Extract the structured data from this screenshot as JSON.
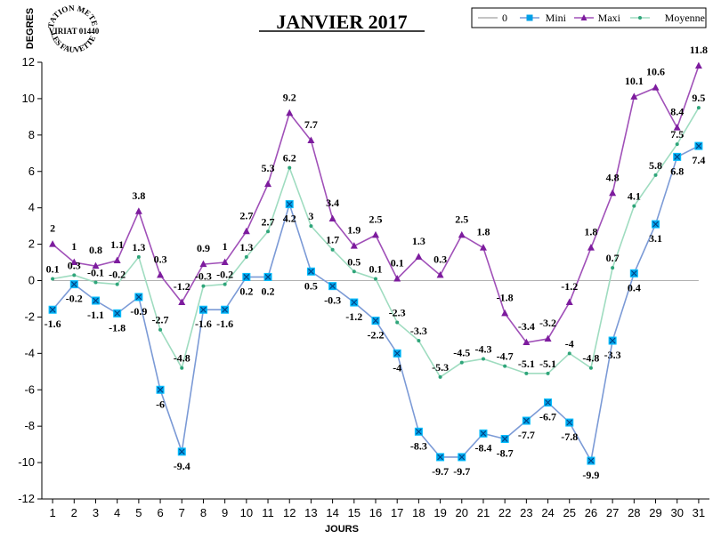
{
  "chart_data": {
    "type": "line",
    "title": "JANVIER 2017",
    "xlabel": "JOURS",
    "ylabel": "DEGRES",
    "ylim": [
      -12,
      12
    ],
    "yticks": [
      -12,
      -10,
      -8,
      -6,
      -4,
      -2,
      0,
      2,
      4,
      6,
      8,
      10,
      12
    ],
    "grid": false,
    "legend_position": "top-right",
    "x": [
      1,
      2,
      3,
      4,
      5,
      6,
      7,
      8,
      9,
      10,
      11,
      12,
      13,
      14,
      15,
      16,
      17,
      18,
      19,
      20,
      21,
      22,
      23,
      24,
      25,
      26,
      27,
      28,
      29,
      30,
      31
    ],
    "series": [
      {
        "name": "0",
        "color": "#b0b0b0",
        "marker": "none",
        "show_labels": false,
        "values": [
          0,
          0,
          0,
          0,
          0,
          0,
          0,
          0,
          0,
          0,
          0,
          0,
          0,
          0,
          0,
          0,
          0,
          0,
          0,
          0,
          0,
          0,
          0,
          0,
          0,
          0,
          0,
          0,
          0,
          0,
          0
        ]
      },
      {
        "name": "Mini",
        "color": "#7b9ad6",
        "marker_color": "#00a0e8",
        "marker": "square",
        "show_labels": true,
        "values": [
          -1.6,
          -0.2,
          -1.1,
          -1.8,
          -0.9,
          -6,
          -9.4,
          -1.6,
          -1.6,
          0.2,
          0.2,
          4.2,
          0.5,
          -0.3,
          -1.2,
          -2.2,
          -4,
          -8.3,
          -9.7,
          -9.7,
          -8.4,
          -8.7,
          -7.7,
          -6.7,
          -7.8,
          -9.9,
          -3.3,
          0.4,
          3.1,
          6.8,
          7.4
        ]
      },
      {
        "name": "Maxi",
        "color": "#a050b8",
        "marker_color": "#7d1c9e",
        "marker": "triangle",
        "show_labels": true,
        "values": [
          2,
          1,
          0.8,
          1.1,
          3.8,
          0.3,
          -1.2,
          0.9,
          1,
          2.7,
          5.3,
          9.2,
          7.7,
          3.4,
          1.9,
          2.5,
          0.1,
          1.3,
          0.3,
          2.5,
          1.8,
          -1.8,
          -3.4,
          -3.2,
          -1.2,
          1.8,
          4.8,
          10.1,
          10.6,
          8.4,
          11.8
        ]
      },
      {
        "name": "Moyenne",
        "color": "#9fdcc0",
        "marker_color": "#2fa57a",
        "marker": "dot",
        "show_labels": true,
        "values": [
          0.1,
          0.3,
          -0.1,
          -0.2,
          1.3,
          -2.7,
          -4.8,
          -0.3,
          -0.2,
          1.3,
          2.7,
          6.2,
          3,
          1.7,
          0.5,
          0.1,
          -2.3,
          -3.3,
          -5.3,
          -4.5,
          -4.3,
          -4.7,
          -5.1,
          -5.1,
          -4,
          -4.8,
          0.7,
          4.1,
          5.8,
          7.5,
          9.5
        ]
      }
    ]
  },
  "stamp": {
    "line1": "STATION METEO",
    "line2": "VIRIAT 01440",
    "line3": "LES FAUVETTES"
  }
}
